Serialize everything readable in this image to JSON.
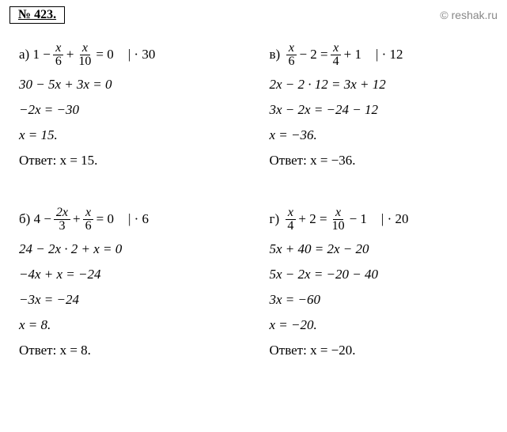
{
  "header": {
    "problem_number": "№ 423.",
    "watermark": "© reshak.ru"
  },
  "problems": {
    "a": {
      "label": "а)",
      "eq_parts": {
        "p1": "1 −",
        "f1_num": "x",
        "f1_den": "6",
        "p2": "+",
        "f2_num": "x",
        "f2_den": "10",
        "p3": "= 0",
        "mult": "| · 30"
      },
      "steps": [
        "30 − 5x + 3x = 0",
        "−2x = −30",
        "x = 15."
      ],
      "answer": "Ответ: x = 15."
    },
    "b": {
      "label": "б)",
      "eq_parts": {
        "p1": "4 −",
        "f1_num": "2x",
        "f1_den": "3",
        "p2": "+",
        "f2_num": "x",
        "f2_den": "6",
        "p3": "= 0",
        "mult": "| · 6"
      },
      "steps": [
        "24 − 2x · 2 + x = 0",
        "−4x + x = −24",
        "−3x = −24",
        "x = 8."
      ],
      "answer": "Ответ: x = 8."
    },
    "v": {
      "label": "в)",
      "eq_parts": {
        "f1_num": "x",
        "f1_den": "6",
        "p1": "− 2 =",
        "f2_num": "x",
        "f2_den": "4",
        "p2": "+ 1",
        "mult": "| · 12"
      },
      "steps": [
        "2x − 2 · 12 = 3x + 12",
        "3x − 2x = −24 − 12",
        "x = −36."
      ],
      "answer": "Ответ: x = −36."
    },
    "g": {
      "label": "г)",
      "eq_parts": {
        "f1_num": "x",
        "f1_den": "4",
        "p1": "+ 2 =",
        "f2_num": "x",
        "f2_den": "10",
        "p2": "− 1",
        "mult": "| · 20"
      },
      "steps": [
        "5x + 40 = 2x − 20",
        "5x − 2x = −20 − 40",
        "3x = −60",
        "x = −20."
      ],
      "answer": "Ответ: x = −20."
    }
  }
}
